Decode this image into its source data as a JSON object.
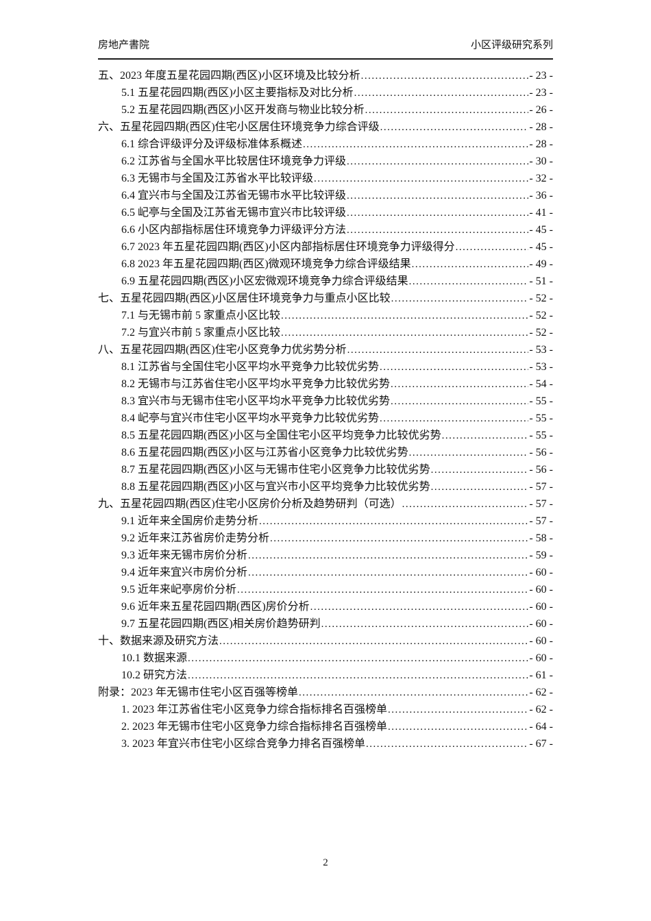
{
  "header": {
    "left": "房地产書院",
    "right": "小区评级研究系列"
  },
  "toc": {
    "entries": [
      {
        "level": 1,
        "label": "五、2023 年度五星花园四期(西区)小区环境及比较分析",
        "page_label": "- 23 -"
      },
      {
        "level": 2,
        "label": "5.1 五星花园四期(西区)小区主要指标及对比分析",
        "page_label": "- 23 -"
      },
      {
        "level": 2,
        "label": "5.2 五星花园四期(西区)小区开发商与物业比较分析",
        "page_label": "- 26 -"
      },
      {
        "level": 1,
        "label": "六、五星花园四期(西区)住宅小区居住环境竞争力综合评级",
        "page_label": "- 28 -"
      },
      {
        "level": 2,
        "label": "6.1 综合评级评分及评级标准体系概述",
        "page_label": "- 28 -"
      },
      {
        "level": 2,
        "label": "6.2 江苏省与全国水平比较居住环境竞争力评级",
        "page_label": "- 30 -"
      },
      {
        "level": 2,
        "label": "6.3 无锡市与全国及江苏省水平比较评级",
        "page_label": "- 32 -"
      },
      {
        "level": 2,
        "label": "6.4 宜兴市与全国及江苏省无锡市水平比较评级",
        "page_label": "- 36 -"
      },
      {
        "level": 2,
        "label": "6.5 屺亭与全国及江苏省无锡市宜兴市比较评级",
        "page_label": "- 41 -"
      },
      {
        "level": 2,
        "label": "6.6 小区内部指标居住环境竞争力评级评分方法",
        "page_label": "- 45 -"
      },
      {
        "level": 2,
        "label": "6.7 2023 年五星花园四期(西区)小区内部指标居住环境竞争力评级得分",
        "page_label": "- 45 -"
      },
      {
        "level": 2,
        "label": "6.8 2023 年五星花园四期(西区)微观环境竞争力综合评级结果",
        "page_label": "- 49 -"
      },
      {
        "level": 2,
        "label": "6.9 五星花园四期(西区)小区宏微观环境竞争力综合评级结果",
        "page_label": "- 51 -"
      },
      {
        "level": 1,
        "label": "七、五星花园四期(西区)小区居住环境竞争力与重点小区比较",
        "page_label": "- 52 -"
      },
      {
        "level": 2,
        "label": "7.1 与无锡市前 5 家重点小区比较",
        "page_label": "- 52 -"
      },
      {
        "level": 2,
        "label": "7.2 与宜兴市前 5 家重点小区比较",
        "page_label": "- 52 -"
      },
      {
        "level": 1,
        "label": "八、五星花园四期(西区)住宅小区竞争力优劣势分析",
        "page_label": "- 53 -"
      },
      {
        "level": 2,
        "label": "8.1 江苏省与全国住宅小区平均水平竞争力比较优劣势",
        "page_label": "- 53 -"
      },
      {
        "level": 2,
        "label": "8.2 无锡市与江苏省住宅小区平均水平竞争力比较优劣势",
        "page_label": "- 54 -"
      },
      {
        "level": 2,
        "label": "8.3 宜兴市与无锡市住宅小区平均水平竞争力比较优劣势",
        "page_label": "- 55 -"
      },
      {
        "level": 2,
        "label": "8.4 屺亭与宜兴市住宅小区平均水平竞争力比较优劣势",
        "page_label": "- 55 -"
      },
      {
        "level": 2,
        "label": "8.5 五星花园四期(西区)小区与全国住宅小区平均竞争力比较优劣势",
        "page_label": "- 55 -"
      },
      {
        "level": 2,
        "label": "8.6 五星花园四期(西区)小区与江苏省小区竞争力比较优劣势",
        "page_label": "- 56 -"
      },
      {
        "level": 2,
        "label": "8.7 五星花园四期(西区)小区与无锡市住宅小区竞争力比较优劣势",
        "page_label": "- 56 -"
      },
      {
        "level": 2,
        "label": "8.8 五星花园四期(西区)小区与宜兴市小区平均竞争力比较优劣势",
        "page_label": "- 57 -"
      },
      {
        "level": 1,
        "label": "九、五星花园四期(西区)住宅小区房价分析及趋势研判（可选）",
        "page_label": "- 57 -"
      },
      {
        "level": 2,
        "label": "9.1 近年来全国房价走势分析",
        "page_label": "- 57 -"
      },
      {
        "level": 2,
        "label": "9.2 近年来江苏省房价走势分析",
        "page_label": "- 58 -"
      },
      {
        "level": 2,
        "label": "9.3 近年来无锡市房价分析",
        "page_label": "- 59 -"
      },
      {
        "level": 2,
        "label": "9.4 近年来宜兴市房价分析",
        "page_label": "- 60 -"
      },
      {
        "level": 2,
        "label": "9.5 近年来屺亭房价分析",
        "page_label": "- 60 -"
      },
      {
        "level": 2,
        "label": "9.6 近年来五星花园四期(西区)房价分析",
        "page_label": "- 60 -"
      },
      {
        "level": 2,
        "label": "9.7 五星花园四期(西区)相关房价趋势研判",
        "page_label": "- 60 -"
      },
      {
        "level": 1,
        "label": "十、数据来源及研究方法",
        "page_label": "- 60 -"
      },
      {
        "level": 2,
        "label": "10.1 数据来源",
        "page_label": "- 60 -"
      },
      {
        "level": 2,
        "label": "10.2 研究方法",
        "page_label": "- 61 -"
      },
      {
        "level": 1,
        "label": "附录：2023 年无锡市住宅小区百强等榜单",
        "page_label": "- 62 -"
      },
      {
        "level": 2,
        "label": "1.  2023 年江苏省住宅小区竞争力综合指标排名百强榜单",
        "page_label": "- 62 -"
      },
      {
        "level": 2,
        "label": "2.  2023 年无锡市住宅小区竞争力综合指标排名百强榜单",
        "page_label": "- 64 -"
      },
      {
        "level": 2,
        "label": "3.  2023 年宜兴市住宅小区综合竞争力排名百强榜单",
        "page_label": "- 67 -"
      }
    ]
  },
  "footer": {
    "page_number": "2"
  }
}
